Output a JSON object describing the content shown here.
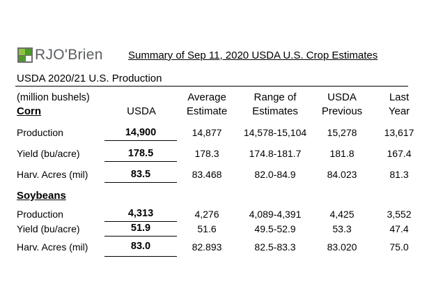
{
  "brand": {
    "name": "RJO'Brien",
    "mark_colors": [
      "#8cc63f",
      "#4e9a2a",
      "#6d6e71"
    ]
  },
  "title": "Summary of Sep 11, 2020 USDA U.S. Crop Estimates",
  "section_title": "USDA 2020/21 U.S. Production",
  "units": "(million bushels)",
  "columns": {
    "usda": "USDA",
    "avg_line1": "Average",
    "avg_line2": "Estimate",
    "range_line1": "Range of",
    "range_line2": "Estimates",
    "prev_line1": "USDA",
    "prev_line2": "Previous",
    "last_line1": "Last",
    "last_line2": "Year"
  },
  "corn": {
    "name": "Corn",
    "rows": [
      {
        "label": "Production",
        "usda": "14,900",
        "avg": "14,877",
        "range": "14,578-15,104",
        "prev": "15,278",
        "last": "13,617"
      },
      {
        "label": "Yield (bu/acre)",
        "usda": "178.5",
        "avg": "178.3",
        "range": "174.8-181.7",
        "prev": "181.8",
        "last": "167.4"
      },
      {
        "label": "Harv. Acres (mil)",
        "usda": "83.5",
        "avg": "83.468",
        "range": "82.0-84.9",
        "prev": "84.023",
        "last": "81.3"
      }
    ]
  },
  "soybeans": {
    "name": "Soybeans",
    "rows": [
      {
        "label": "Production",
        "usda": "4,313",
        "avg": "4,276",
        "range": "4,089-4,391",
        "prev": "4,425",
        "last": "3,552"
      },
      {
        "label": "Yield (bu/acre)",
        "usda": "51.9",
        "avg": "51.6",
        "range": "49.5-52.9",
        "prev": "53.3",
        "last": "47.4"
      },
      {
        "label": "Harv. Acres (mil)",
        "usda": "83.0",
        "avg": "82.893",
        "range": "82.5-83.3",
        "prev": "83.020",
        "last": "75.0"
      }
    ]
  }
}
